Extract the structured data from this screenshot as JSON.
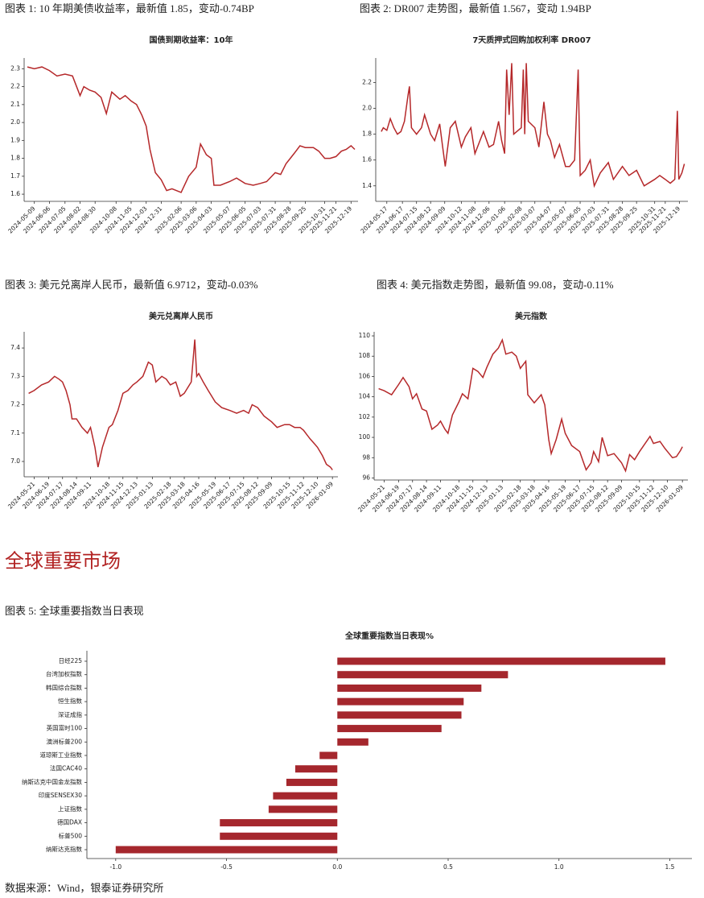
{
  "section_title": "全球重要市场",
  "source": "数据来源：Wind，银泰证券研究所",
  "chart_data": [
    {
      "type": "line",
      "caption": "图表 1: 10 年期美债收益率，最新值 1.85，变动-0.74BP",
      "title": "国债到期收益率：10年",
      "color": "#b5282a",
      "x": [
        "2024-04-26",
        "2024-05-09",
        "2024-05-23",
        "2024-06-06",
        "2024-06-20",
        "2024-07-05",
        "2024-07-19",
        "2024-08-02",
        "2024-08-09",
        "2024-08-20",
        "2024-08-30",
        "2024-09-10",
        "2024-09-20",
        "2024-09-30",
        "2024-10-15",
        "2024-10-25",
        "2024-11-05",
        "2024-11-15",
        "2024-11-25",
        "2024-12-03",
        "2024-12-10",
        "2024-12-20",
        "2024-12-31",
        "2025-01-10",
        "2025-01-20",
        "2025-02-06",
        "2025-02-20",
        "2025-03-06",
        "2025-03-14",
        "2025-03-25",
        "2025-04-03",
        "2025-04-08",
        "2025-04-20",
        "2025-05-07",
        "2025-05-20",
        "2025-06-05",
        "2025-06-20",
        "2025-07-03",
        "2025-07-15",
        "2025-07-31",
        "2025-08-10",
        "2025-08-20",
        "2025-08-28",
        "2025-09-05",
        "2025-09-15",
        "2025-09-25",
        "2025-10-10",
        "2025-10-20",
        "2025-10-31",
        "2025-11-10",
        "2025-11-21",
        "2025-12-01",
        "2025-12-10",
        "2025-12-19",
        "2025-12-26"
      ],
      "values": [
        2.31,
        2.3,
        2.31,
        2.29,
        2.26,
        2.27,
        2.26,
        2.15,
        2.2,
        2.18,
        2.17,
        2.14,
        2.05,
        2.17,
        2.13,
        2.15,
        2.12,
        2.1,
        2.04,
        1.98,
        1.85,
        1.72,
        1.68,
        1.62,
        1.63,
        1.61,
        1.7,
        1.75,
        1.88,
        1.82,
        1.8,
        1.65,
        1.65,
        1.67,
        1.69,
        1.66,
        1.65,
        1.66,
        1.67,
        1.72,
        1.71,
        1.77,
        1.8,
        1.83,
        1.87,
        1.86,
        1.86,
        1.84,
        1.8,
        1.8,
        1.81,
        1.84,
        1.85,
        1.87,
        1.85
      ],
      "xlim": [
        "2024-04-20",
        "2026-01-01"
      ],
      "xticks": [
        "2024-05-09",
        "2024-06-06",
        "2024-07-05",
        "2024-08-02",
        "2024-08-30",
        "2024-10-08",
        "2024-11-05",
        "2024-12-03",
        "2024-12-31",
        "2025-02-06",
        "2025-03-06",
        "2025-04-03",
        "2025-05-07",
        "2025-06-05",
        "2025-07-03",
        "2025-07-31",
        "2025-08-28",
        "2025-09-25",
        "2025-10-31",
        "2025-11-21",
        "2025-12-19"
      ],
      "ylim": [
        1.56,
        2.36
      ],
      "yticks": [
        1.6,
        1.7,
        1.8,
        1.9,
        {
          "value": 2,
          "label": "2.0"
        },
        2.1,
        2.2,
        2.3
      ]
    },
    {
      "type": "line",
      "caption": "图表 2: DR007 走势图，最新值 1.567，变动 1.94BP",
      "title": "7天质押式回购加权利率 DR007",
      "color": "#b5282a",
      "x": [
        "2024-05-06",
        "2024-05-10",
        "2024-05-17",
        "2024-05-24",
        "2024-05-31",
        "2024-06-07",
        "2024-06-14",
        "2024-06-21",
        "2024-06-28",
        "2024-07-01",
        "2024-07-05",
        "2024-07-15",
        "2024-07-25",
        "2024-07-31",
        "2024-08-12",
        "2024-08-20",
        "2024-08-30",
        "2024-09-05",
        "2024-09-10",
        "2024-09-20",
        "2024-09-30",
        "2024-10-12",
        "2024-10-20",
        "2024-10-31",
        "2024-11-08",
        "2024-11-15",
        "2024-11-25",
        "2024-12-06",
        "2024-12-15",
        "2024-12-25",
        "2024-12-31",
        "2025-01-06",
        "2025-01-10",
        "2025-01-15",
        "2025-01-20",
        "2025-01-24",
        "2025-02-08",
        "2025-02-12",
        "2025-02-15",
        "2025-02-18",
        "2025-02-22",
        "2025-03-07",
        "2025-03-15",
        "2025-03-25",
        "2025-04-01",
        "2025-04-07",
        "2025-04-15",
        "2025-04-25",
        "2025-05-07",
        "2025-05-15",
        "2025-05-25",
        "2025-06-01",
        "2025-06-05",
        "2025-06-15",
        "2025-06-25",
        "2025-07-03",
        "2025-07-15",
        "2025-07-31",
        "2025-08-10",
        "2025-08-28",
        "2025-09-10",
        "2025-09-25",
        "2025-10-10",
        "2025-10-31",
        "2025-11-10",
        "2025-11-21",
        "2025-12-01",
        "2025-12-10",
        "2025-12-15",
        "2025-12-18",
        "2025-12-24",
        "2025-12-29"
      ],
      "values": [
        1.82,
        1.85,
        1.83,
        1.92,
        1.85,
        1.8,
        1.82,
        1.9,
        2.1,
        2.17,
        1.85,
        1.8,
        1.85,
        1.95,
        1.8,
        1.75,
        1.88,
        1.7,
        1.55,
        1.85,
        1.9,
        1.7,
        1.78,
        1.85,
        1.65,
        1.72,
        1.82,
        1.7,
        1.72,
        1.9,
        1.75,
        1.65,
        2.3,
        1.95,
        2.35,
        1.8,
        1.85,
        2.3,
        1.8,
        2.35,
        1.9,
        1.85,
        1.7,
        2.05,
        1.8,
        1.75,
        1.62,
        1.72,
        1.55,
        1.55,
        1.6,
        2.3,
        1.48,
        1.52,
        1.6,
        1.4,
        1.5,
        1.58,
        1.45,
        1.55,
        1.48,
        1.52,
        1.4,
        1.45,
        1.48,
        1.45,
        1.42,
        1.45,
        1.98,
        1.45,
        1.5,
        1.57
      ],
      "xlim": [
        "2024-04-25",
        "2026-01-05"
      ],
      "xticks": [
        "2024-05-17",
        "2024-06-17",
        "2024-07-15",
        "2024-08-12",
        "2024-09-09",
        "2024-10-12",
        "2024-11-08",
        "2024-12-06",
        "2025-01-06",
        "2025-02-08",
        "2025-03-07",
        "2025-04-07",
        "2025-05-07",
        "2025-06-05",
        "2025-07-03",
        "2025-07-31",
        "2025-08-28",
        "2025-09-25",
        "2025-10-31",
        "2025-11-21",
        "2025-12-19"
      ],
      "ylim": [
        1.28,
        2.39
      ],
      "yticks": [
        1.4,
        1.6,
        1.8,
        {
          "value": 2,
          "label": "2.0"
        },
        2.2
      ]
    },
    {
      "type": "line",
      "caption": "图表 3: 美元兑离岸人民币，最新值 6.9712，变动-0.03%",
      "title": "美元兑离岸人民币",
      "color": "#b5282a",
      "x": [
        "2024-05-10",
        "2024-05-21",
        "2024-06-05",
        "2024-06-19",
        "2024-07-01",
        "2024-07-10",
        "2024-07-17",
        "2024-07-24",
        "2024-08-01",
        "2024-08-05",
        "2024-08-14",
        "2024-08-25",
        "2024-09-05",
        "2024-09-11",
        "2024-09-20",
        "2024-09-26",
        "2024-10-05",
        "2024-10-18",
        "2024-10-25",
        "2024-11-05",
        "2024-11-15",
        "2024-11-25",
        "2024-12-05",
        "2024-12-13",
        "2024-12-25",
        "2025-01-05",
        "2025-01-13",
        "2025-01-20",
        "2025-02-01",
        "2025-02-10",
        "2025-02-18",
        "2025-03-01",
        "2025-03-10",
        "2025-03-18",
        "2025-04-01",
        "2025-04-08",
        "2025-04-12",
        "2025-04-16",
        "2025-04-25",
        "2025-05-05",
        "2025-05-19",
        "2025-06-01",
        "2025-06-17",
        "2025-07-01",
        "2025-07-15",
        "2025-07-25",
        "2025-08-01",
        "2025-08-12",
        "2025-08-25",
        "2025-09-09",
        "2025-09-20",
        "2025-10-05",
        "2025-10-15",
        "2025-10-25",
        "2025-11-05",
        "2025-11-12",
        "2025-11-25",
        "2025-12-05",
        "2025-12-10",
        "2025-12-20",
        "2025-12-28",
        "2026-01-05",
        "2026-01-09"
      ],
      "values": [
        7.24,
        7.25,
        7.27,
        7.28,
        7.3,
        7.29,
        7.28,
        7.25,
        7.2,
        7.15,
        7.15,
        7.12,
        7.1,
        7.12,
        7.05,
        6.98,
        7.05,
        7.12,
        7.13,
        7.18,
        7.24,
        7.25,
        7.27,
        7.28,
        7.3,
        7.35,
        7.34,
        7.28,
        7.3,
        7.29,
        7.27,
        7.28,
        7.23,
        7.24,
        7.28,
        7.43,
        7.3,
        7.31,
        7.28,
        7.25,
        7.21,
        7.19,
        7.18,
        7.17,
        7.18,
        7.17,
        7.2,
        7.19,
        7.16,
        7.14,
        7.12,
        7.13,
        7.13,
        7.12,
        7.12,
        7.11,
        7.08,
        7.06,
        7.05,
        7.02,
        6.99,
        6.98,
        6.97
      ],
      "xlim": [
        "2024-05-01",
        "2026-01-20"
      ],
      "xticks": [
        "2024-05-21",
        "2024-06-19",
        "2024-07-17",
        "2024-08-14",
        "2024-09-11",
        "2024-10-18",
        "2024-11-15",
        "2024-12-13",
        "2025-01-13",
        "2025-02-18",
        "2025-03-18",
        "2025-04-16",
        "2025-05-19",
        "2025-06-17",
        "2025-07-15",
        "2025-08-12",
        "2025-09-09",
        "2025-10-15",
        "2025-11-12",
        "2025-12-10",
        "2026-01-09"
      ],
      "ylim": [
        6.946,
        7.457
      ],
      "yticks": [
        {
          "value": 7,
          "label": "7.0"
        },
        7.1,
        7.2,
        7.3,
        7.4
      ]
    },
    {
      "type": "line",
      "caption": "图表 4: 美元指数走势图，最新值 99.08，变动-0.11%",
      "title": "美元指数",
      "color": "#b5282a",
      "x": [
        "2024-05-10",
        "2024-05-21",
        "2024-06-05",
        "2024-06-19",
        "2024-06-28",
        "2024-07-10",
        "2024-07-17",
        "2024-07-25",
        "2024-08-05",
        "2024-08-14",
        "2024-08-25",
        "2024-09-05",
        "2024-09-11",
        "2024-09-20",
        "2024-09-26",
        "2024-10-05",
        "2024-10-18",
        "2024-10-25",
        "2024-11-05",
        "2024-11-15",
        "2024-11-25",
        "2024-12-05",
        "2024-12-13",
        "2024-12-25",
        "2025-01-05",
        "2025-01-13",
        "2025-01-20",
        "2025-02-01",
        "2025-02-10",
        "2025-02-18",
        "2025-03-01",
        "2025-03-05",
        "2025-03-18",
        "2025-04-01",
        "2025-04-08",
        "2025-04-16",
        "2025-04-21",
        "2025-05-01",
        "2025-05-12",
        "2025-05-19",
        "2025-06-01",
        "2025-06-17",
        "2025-06-30",
        "2025-07-10",
        "2025-07-15",
        "2025-07-25",
        "2025-08-01",
        "2025-08-12",
        "2025-08-25",
        "2025-09-09",
        "2025-09-17",
        "2025-09-25",
        "2025-10-05",
        "2025-10-15",
        "2025-11-05",
        "2025-11-12",
        "2025-11-25",
        "2025-12-05",
        "2025-12-10",
        "2025-12-20",
        "2025-12-28",
        "2026-01-05",
        "2026-01-09"
      ],
      "values": [
        104.8,
        104.6,
        104.2,
        105.2,
        105.9,
        105,
        103.8,
        104.3,
        102.8,
        102.6,
        100.8,
        101.2,
        101.6,
        100.8,
        100.4,
        102.2,
        103.5,
        104.3,
        103.8,
        106.8,
        106.5,
        105.9,
        106.9,
        108.2,
        108.8,
        109.6,
        108.2,
        108.4,
        108,
        106.8,
        107.5,
        104.2,
        103.4,
        104.2,
        103.2,
        99.8,
        98.4,
        99.8,
        101.8,
        100.4,
        99.2,
        98.6,
        96.8,
        97.5,
        98.6,
        97.6,
        100,
        98.2,
        98.4,
        97.5,
        96.7,
        98.3,
        97.8,
        98.6,
        100.1,
        99.4,
        99.6,
        98.9,
        98.6,
        98,
        98.1,
        98.7,
        99.08
      ],
      "xlim": [
        "2024-05-01",
        "2026-01-20"
      ],
      "xticks": [
        "2024-05-21",
        "2024-06-19",
        "2024-07-17",
        "2024-08-14",
        "2024-09-11",
        "2024-10-18",
        "2024-11-15",
        "2024-12-13",
        "2025-01-13",
        "2025-02-18",
        "2025-03-18",
        "2025-04-16",
        "2025-05-19",
        "2025-06-17",
        "2025-07-15",
        "2025-08-12",
        "2025-09-09",
        "2025-10-15",
        "2025-11-12",
        "2025-12-10",
        "2026-01-09"
      ],
      "ylim": [
        95.8,
        110.4
      ],
      "yticks": [
        96,
        98,
        100,
        102,
        104,
        106,
        108,
        110
      ]
    },
    {
      "type": "bar",
      "orientation": "horizontal",
      "caption": "图表 5: 全球重要指数当日表现",
      "title": "全球重要指数当日表现%",
      "color": "#a5272d",
      "categories": [
        "日经225",
        "台湾加权指数",
        "韩国综合指数",
        "恒生指数",
        "深证成指",
        "英国富时100",
        "澳洲标普200",
        "道琼斯工业指数",
        "法国CAC40",
        "纳斯达克中国金龙指数",
        "印度SENSEX30",
        "上证指数",
        "德国DAX",
        "标普500",
        "纳斯达克指数"
      ],
      "values": [
        1.48,
        0.77,
        0.65,
        0.57,
        0.56,
        0.47,
        0.14,
        -0.08,
        -0.19,
        -0.23,
        -0.29,
        -0.31,
        -0.53,
        -0.53,
        -1.0
      ],
      "xlim": [
        -1.13,
        1.6
      ],
      "xticks": [
        {
          "value": -1,
          "label": "-1.0"
        },
        -0.5,
        {
          "value": 0,
          "label": "0.0"
        },
        0.5,
        {
          "value": 1,
          "label": "1.0"
        },
        1.5
      ]
    }
  ]
}
